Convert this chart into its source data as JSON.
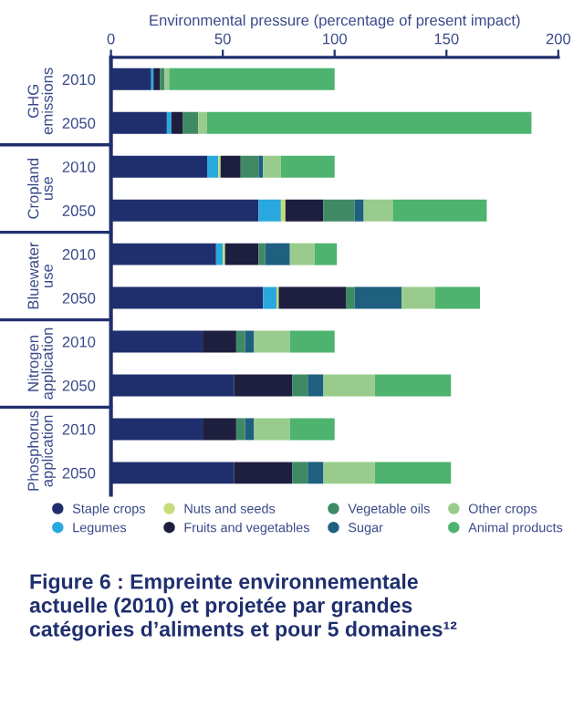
{
  "chart_data": {
    "type": "bar",
    "orientation": "horizontal",
    "stacked": true,
    "title": "Figure 6 : Empreinte environnementale\nactuelle (2010) et projetée par grandes\ncatégories d’aliments et pour 5 domaines¹²",
    "xlabel": "Environmental pressure (percentage of present impact)",
    "categories": [
      "2010",
      "2050",
      "2010",
      "2050",
      "2010",
      "2050",
      "2010",
      "2050",
      "2010",
      "2050"
    ],
    "annotations": [
      "GHG\nemissions",
      "Cropland\nuse",
      "Bluewater\nuse",
      "Nitrogen\napplication",
      "Phosphorus\napplication"
    ],
    "xlim": [
      0,
      200
    ],
    "xticks": [
      0,
      50,
      100,
      150,
      200
    ],
    "grid": false,
    "legend": "bottom",
    "series": [
      {
        "name": "Staple crops",
        "color": "#1f2f6e",
        "values": [
          18,
          25,
          43,
          66,
          47,
          68,
          41,
          55,
          41,
          55
        ]
      },
      {
        "name": "Legumes",
        "color": "#29a8e0",
        "values": [
          1,
          2,
          5,
          10,
          3,
          6,
          0,
          0,
          0,
          0
        ]
      },
      {
        "name": "Nuts and seeds",
        "color": "#c5dc7a",
        "values": [
          0,
          0,
          1,
          2,
          1,
          1,
          0,
          0,
          0,
          0
        ]
      },
      {
        "name": "Fruits and vegetables",
        "color": "#1e1e3f",
        "values": [
          3,
          5,
          9,
          17,
          15,
          30,
          15,
          26,
          15,
          26
        ]
      },
      {
        "name": "Vegetable oils",
        "color": "#3f8a64",
        "values": [
          2,
          7,
          8,
          14,
          3,
          4,
          4,
          7,
          4,
          7
        ]
      },
      {
        "name": "Sugar",
        "color": "#1f5f80",
        "values": [
          0,
          0,
          2,
          4,
          11,
          21,
          4,
          7,
          4,
          7
        ]
      },
      {
        "name": "Other crops",
        "color": "#99cc8c",
        "values": [
          2,
          4,
          8,
          13,
          11,
          15,
          16,
          23,
          16,
          23
        ]
      },
      {
        "name": "Animal products",
        "color": "#4db36e",
        "values": [
          74,
          145,
          24,
          42,
          10,
          20,
          20,
          34,
          20,
          34
        ]
      }
    ]
  }
}
